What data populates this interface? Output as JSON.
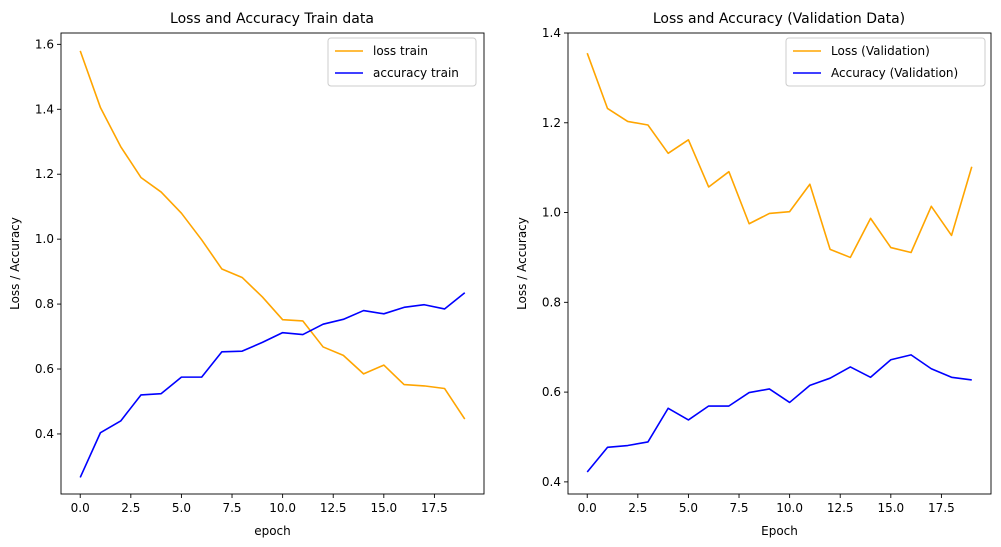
{
  "chart_data": [
    {
      "type": "line",
      "title": "Loss and Accuracy Train data",
      "xlabel": "epoch",
      "ylabel": "Loss / Accuracy",
      "xlim": [
        -0.95,
        19.95
      ],
      "ylim": [
        0.215,
        1.635
      ],
      "xticks": [
        0.0,
        2.5,
        5.0,
        7.5,
        10.0,
        12.5,
        15.0,
        17.5
      ],
      "xtick_labels": [
        "0.0",
        "2.5",
        "5.0",
        "7.5",
        "10.0",
        "12.5",
        "15.0",
        "17.5"
      ],
      "yticks": [
        0.4,
        0.6,
        0.8,
        1.0,
        1.2,
        1.4,
        1.6
      ],
      "ytick_labels": [
        "0.4",
        "0.6",
        "0.8",
        "1.0",
        "1.2",
        "1.4",
        "1.6"
      ],
      "grid": false,
      "legend": "top-right",
      "x": [
        0,
        1,
        2,
        3,
        4,
        5,
        6,
        7,
        8,
        9,
        10,
        11,
        12,
        13,
        14,
        15,
        16,
        17,
        18,
        19
      ],
      "series": [
        {
          "name": "loss train",
          "color": "#ffa500",
          "values": [
            1.58,
            1.405,
            1.285,
            1.19,
            1.145,
            1.08,
            0.998,
            0.908,
            0.882,
            0.822,
            0.752,
            0.748,
            0.668,
            0.642,
            0.585,
            0.612,
            0.552,
            0.548,
            0.54,
            0.446
          ]
        },
        {
          "name": "accuracy train",
          "color": "#0000ff",
          "values": [
            0.266,
            0.404,
            0.44,
            0.52,
            0.524,
            0.575,
            0.575,
            0.653,
            0.655,
            0.682,
            0.712,
            0.706,
            0.738,
            0.753,
            0.78,
            0.77,
            0.79,
            0.798,
            0.785,
            0.835
          ]
        }
      ]
    },
    {
      "type": "line",
      "title": "Loss and Accuracy (Validation Data)",
      "xlabel": "Epoch",
      "ylabel": "Loss / Accuracy",
      "xlim": [
        -0.95,
        19.95
      ],
      "ylim": [
        0.373,
        1.4
      ],
      "xticks": [
        0.0,
        2.5,
        5.0,
        7.5,
        10.0,
        12.5,
        15.0,
        17.5
      ],
      "xtick_labels": [
        "0.0",
        "2.5",
        "5.0",
        "7.5",
        "10.0",
        "12.5",
        "15.0",
        "17.5"
      ],
      "yticks": [
        0.4,
        0.6,
        0.8,
        1.0,
        1.2,
        1.4
      ],
      "ytick_labels": [
        "0.4",
        "0.6",
        "0.8",
        "1.0",
        "1.2",
        "1.4"
      ],
      "grid": false,
      "legend": "top-right",
      "x": [
        0,
        1,
        2,
        3,
        4,
        5,
        6,
        7,
        8,
        9,
        10,
        11,
        12,
        13,
        14,
        15,
        16,
        17,
        18,
        19
      ],
      "series": [
        {
          "name": "Loss (Validation)",
          "color": "#ffa500",
          "values": [
            1.355,
            1.232,
            1.203,
            1.195,
            1.132,
            1.162,
            1.057,
            1.091,
            0.975,
            0.998,
            1.002,
            1.063,
            0.918,
            0.9,
            0.987,
            0.922,
            0.911,
            1.014,
            0.949,
            1.102
          ]
        },
        {
          "name": "Accuracy (Validation)",
          "color": "#0000ff",
          "values": [
            0.422,
            0.477,
            0.481,
            0.489,
            0.564,
            0.538,
            0.569,
            0.569,
            0.599,
            0.607,
            0.577,
            0.615,
            0.631,
            0.656,
            0.633,
            0.672,
            0.683,
            0.652,
            0.633,
            0.627
          ]
        }
      ]
    }
  ]
}
